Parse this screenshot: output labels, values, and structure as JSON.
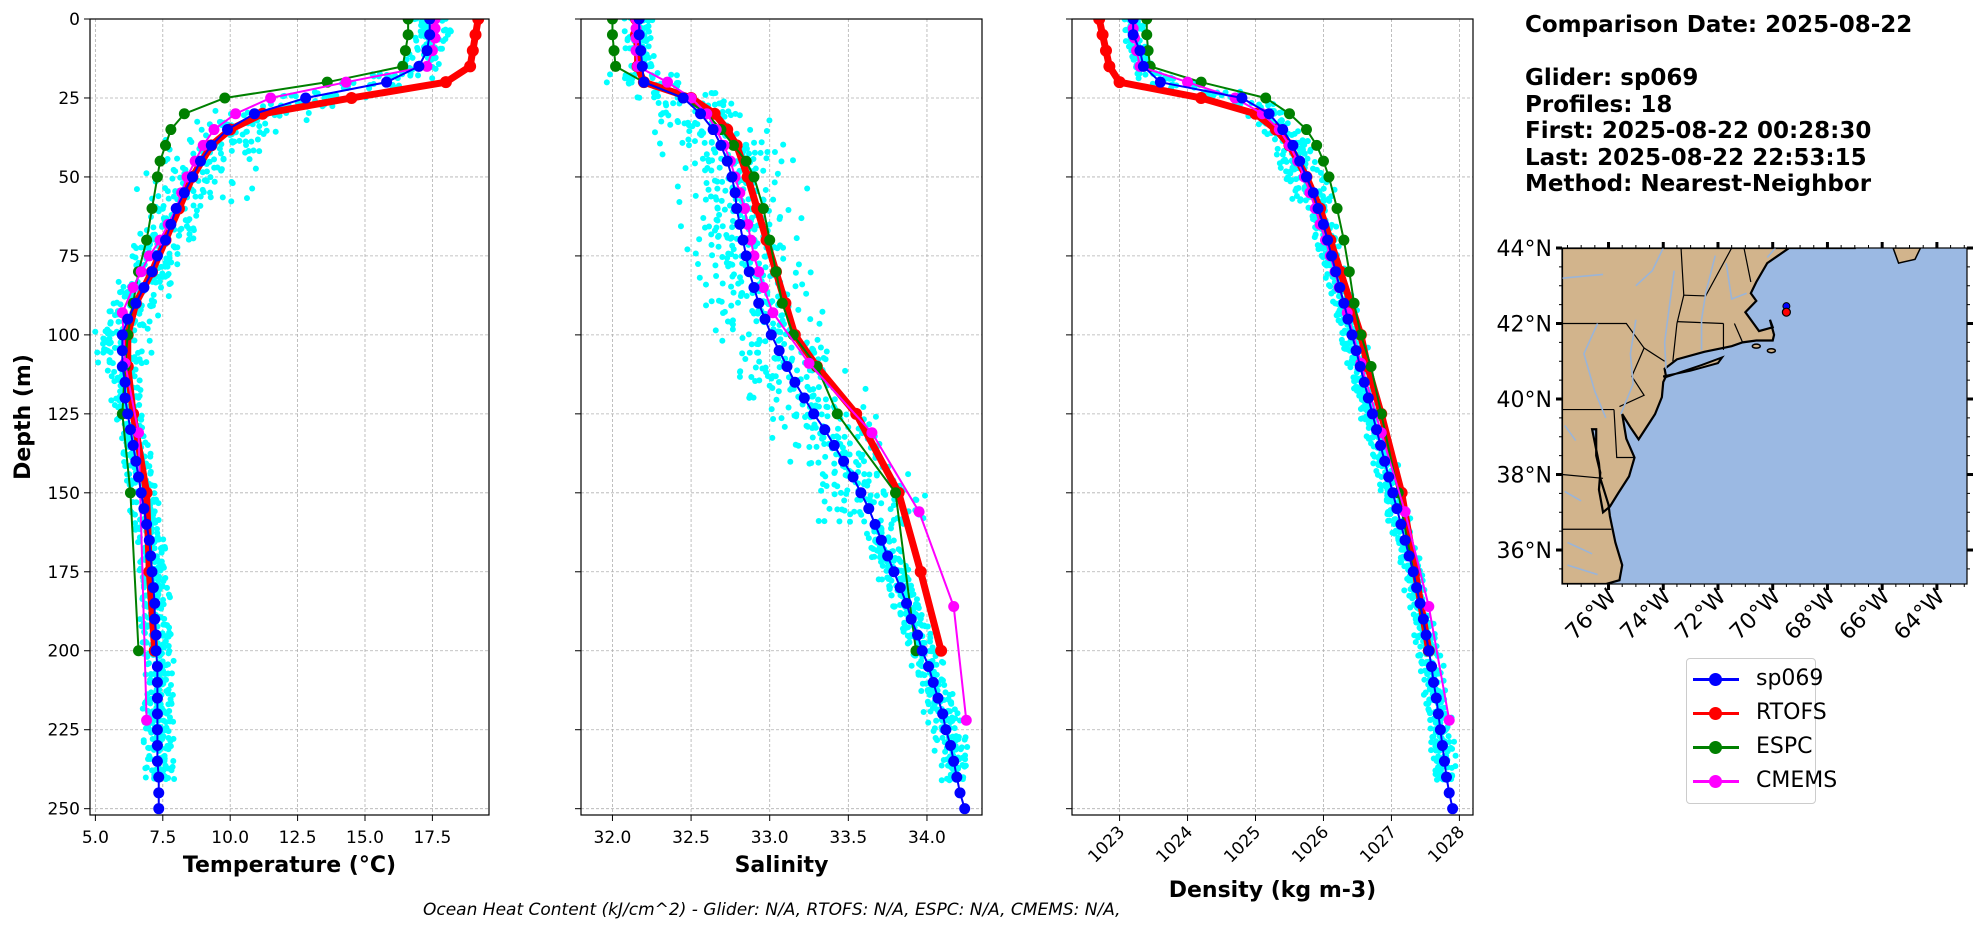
{
  "info": {
    "comparison_date": "Comparison Date: 2025-08-22",
    "glider": "Glider: sp069",
    "profiles": "Profiles: 18",
    "first": "First: 2025-08-22 00:28:30",
    "last": "Last: 2025-08-22 22:53:15",
    "method": "Method: Nearest-Neighbor"
  },
  "footer": "Ocean Heat Content (kJ/cm^2) - Glider: N/A,  RTOFS: N/A,  ESPC: N/A,  CMEMS: N/A,",
  "colors": {
    "sp069": "#0000ff",
    "RTOFS": "#ff0000",
    "ESPC": "#008000",
    "CMEMS": "#ff00ff",
    "glider_profiles": "#00ffff",
    "land": "#d2b48c",
    "ocean": "#9bb9e3"
  },
  "legend": [
    {
      "label": "sp069",
      "color": "#0000ff"
    },
    {
      "label": "RTOFS",
      "color": "#ff0000"
    },
    {
      "label": "ESPC",
      "color": "#008000"
    },
    {
      "label": "CMEMS",
      "color": "#ff00ff"
    }
  ],
  "chart_data": [
    {
      "type": "line",
      "title": "",
      "xlabel": "Temperature (°C)",
      "ylabel": "Depth (m)",
      "xlim": [
        4.8,
        19.6
      ],
      "ylim": [
        252,
        0
      ],
      "xticks": [
        "5.0",
        "7.5",
        "10.0",
        "12.5",
        "15.0",
        "17.5"
      ],
      "yticks": [
        "0",
        "25",
        "50",
        "75",
        "100",
        "125",
        "150",
        "175",
        "200",
        "225",
        "250"
      ],
      "grid": true,
      "series": [
        {
          "name": "sp069",
          "depth": [
            0,
            5,
            10,
            15,
            20,
            25,
            30,
            35,
            40,
            45,
            50,
            55,
            60,
            65,
            70,
            75,
            80,
            85,
            90,
            95,
            100,
            105,
            110,
            115,
            120,
            125,
            130,
            135,
            140,
            145,
            150,
            155,
            160,
            165,
            170,
            175,
            180,
            185,
            190,
            195,
            200,
            205,
            210,
            215,
            220,
            225,
            230,
            235,
            240,
            245,
            250
          ],
          "values": [
            17.4,
            17.4,
            17.3,
            17.0,
            15.8,
            12.8,
            10.9,
            9.9,
            9.3,
            8.9,
            8.6,
            8.3,
            8.0,
            7.8,
            7.6,
            7.3,
            7.1,
            6.8,
            6.5,
            6.2,
            6.0,
            6.0,
            6.0,
            6.1,
            6.1,
            6.2,
            6.3,
            6.4,
            6.5,
            6.6,
            6.7,
            6.8,
            6.9,
            7.0,
            7.05,
            7.1,
            7.15,
            7.2,
            7.2,
            7.25,
            7.25,
            7.3,
            7.3,
            7.3,
            7.3,
            7.3,
            7.3,
            7.3,
            7.35,
            7.35,
            7.35
          ]
        },
        {
          "name": "RTOFS",
          "depth": [
            0,
            5,
            10,
            15,
            20,
            25,
            30,
            35,
            40,
            50,
            60,
            70,
            80,
            90,
            100,
            110,
            125,
            150,
            175,
            200
          ],
          "values": [
            19.2,
            19.1,
            19.0,
            18.9,
            18.0,
            14.5,
            11.2,
            10.0,
            9.3,
            8.6,
            8.1,
            7.6,
            7.1,
            6.5,
            6.2,
            6.2,
            6.4,
            6.9,
            7.0,
            7.2
          ]
        },
        {
          "name": "ESPC",
          "depth": [
            0,
            5,
            10,
            15,
            20,
            25,
            30,
            35,
            40,
            45,
            50,
            60,
            70,
            80,
            90,
            100,
            110,
            125,
            150,
            200
          ],
          "values": [
            16.6,
            16.6,
            16.5,
            16.4,
            13.6,
            9.8,
            8.3,
            7.8,
            7.6,
            7.4,
            7.3,
            7.1,
            6.9,
            6.6,
            6.4,
            6.2,
            6.1,
            6.0,
            6.3,
            6.6
          ]
        },
        {
          "name": "CMEMS",
          "depth": [
            0,
            3,
            6,
            10,
            15,
            20,
            25,
            30,
            35,
            40,
            45,
            50,
            55,
            60,
            65,
            70,
            75,
            80,
            85,
            93,
            109,
            131,
            222
          ],
          "values": [
            17.6,
            17.6,
            17.6,
            17.5,
            17.3,
            14.3,
            11.5,
            10.2,
            9.4,
            9.0,
            8.7,
            8.4,
            8.2,
            8.0,
            7.7,
            7.4,
            7.0,
            6.7,
            6.4,
            6.0,
            6.1,
            6.6,
            6.9
          ]
        }
      ]
    },
    {
      "type": "line",
      "title": "",
      "xlabel": "Salinity",
      "ylabel": "",
      "xlim": [
        31.8,
        34.35
      ],
      "ylim": [
        252,
        0
      ],
      "xticks": [
        "32.0",
        "32.5",
        "33.0",
        "33.5",
        "34.0"
      ],
      "grid": true,
      "series": [
        {
          "name": "sp069",
          "depth": [
            0,
            5,
            10,
            15,
            20,
            25,
            30,
            35,
            40,
            45,
            50,
            55,
            60,
            65,
            70,
            75,
            80,
            85,
            90,
            95,
            100,
            105,
            110,
            115,
            120,
            125,
            130,
            135,
            140,
            145,
            150,
            155,
            160,
            165,
            170,
            175,
            180,
            185,
            190,
            195,
            200,
            205,
            210,
            215,
            220,
            225,
            230,
            235,
            240,
            245,
            250
          ],
          "values": [
            32.17,
            32.17,
            32.18,
            32.19,
            32.2,
            32.45,
            32.56,
            32.64,
            32.69,
            32.73,
            32.76,
            32.78,
            32.79,
            32.81,
            32.83,
            32.85,
            32.87,
            32.9,
            32.93,
            32.97,
            33.01,
            33.06,
            33.11,
            33.16,
            33.22,
            33.28,
            33.35,
            33.41,
            33.47,
            33.53,
            33.58,
            33.63,
            33.67,
            33.71,
            33.75,
            33.79,
            33.83,
            33.87,
            33.9,
            33.94,
            33.97,
            34.01,
            34.04,
            34.07,
            34.1,
            34.12,
            34.15,
            34.17,
            34.19,
            34.21,
            34.24
          ]
        },
        {
          "name": "RTOFS",
          "depth": [
            0,
            5,
            10,
            15,
            20,
            25,
            30,
            35,
            40,
            50,
            60,
            70,
            80,
            90,
            100,
            110,
            125,
            150,
            175,
            200
          ],
          "values": [
            32.15,
            32.15,
            32.16,
            32.16,
            32.2,
            32.5,
            32.65,
            32.73,
            32.79,
            32.86,
            32.92,
            32.98,
            33.04,
            33.1,
            33.16,
            33.3,
            33.55,
            33.82,
            33.96,
            34.09
          ]
        },
        {
          "name": "ESPC",
          "depth": [
            0,
            5,
            10,
            15,
            20,
            25,
            30,
            35,
            40,
            45,
            50,
            60,
            70,
            80,
            90,
            100,
            110,
            125,
            150,
            200
          ],
          "values": [
            32.0,
            32.0,
            32.01,
            32.02,
            32.2,
            32.45,
            32.6,
            32.69,
            32.77,
            32.85,
            32.9,
            32.96,
            33.0,
            33.04,
            33.08,
            33.15,
            33.3,
            33.43,
            33.8,
            33.93
          ]
        },
        {
          "name": "CMEMS",
          "depth": [
            0,
            3,
            6,
            10,
            15,
            20,
            25,
            30,
            35,
            40,
            45,
            50,
            55,
            60,
            65,
            70,
            75,
            80,
            85,
            93,
            109,
            131,
            156,
            186,
            222
          ],
          "values": [
            32.15,
            32.15,
            32.15,
            32.15,
            32.16,
            32.35,
            32.5,
            32.6,
            32.66,
            32.71,
            32.75,
            32.78,
            32.81,
            32.84,
            32.86,
            32.88,
            32.9,
            32.93,
            32.96,
            33.02,
            33.25,
            33.65,
            33.95,
            34.17,
            34.25
          ]
        }
      ]
    },
    {
      "type": "line",
      "title": "",
      "xlabel": "Density (kg m-3)",
      "ylabel": "",
      "xlim": [
        1022.3,
        1028.2
      ],
      "ylim": [
        252,
        0
      ],
      "xticks": [
        "1023",
        "1024",
        "1025",
        "1026",
        "1027",
        "1028"
      ],
      "grid": true,
      "series": [
        {
          "name": "sp069",
          "depth": [
            0,
            5,
            10,
            15,
            20,
            25,
            30,
            35,
            40,
            45,
            50,
            55,
            60,
            65,
            70,
            75,
            80,
            85,
            90,
            95,
            100,
            105,
            110,
            115,
            120,
            125,
            130,
            135,
            140,
            145,
            150,
            155,
            160,
            165,
            170,
            175,
            180,
            185,
            190,
            195,
            200,
            205,
            210,
            215,
            220,
            225,
            230,
            235,
            240,
            245,
            250
          ],
          "values": [
            1023.2,
            1023.2,
            1023.3,
            1023.35,
            1023.6,
            1024.8,
            1025.2,
            1025.4,
            1025.55,
            1025.65,
            1025.75,
            1025.85,
            1025.92,
            1026.0,
            1026.06,
            1026.12,
            1026.18,
            1026.24,
            1026.3,
            1026.36,
            1026.42,
            1026.48,
            1026.54,
            1026.6,
            1026.66,
            1026.72,
            1026.78,
            1026.84,
            1026.9,
            1026.96,
            1027.02,
            1027.08,
            1027.14,
            1027.2,
            1027.26,
            1027.32,
            1027.37,
            1027.42,
            1027.47,
            1027.51,
            1027.55,
            1027.59,
            1027.62,
            1027.66,
            1027.69,
            1027.72,
            1027.75,
            1027.78,
            1027.81,
            1027.85,
            1027.9
          ]
        },
        {
          "name": "RTOFS",
          "depth": [
            0,
            5,
            10,
            15,
            20,
            25,
            30,
            35,
            40,
            50,
            60,
            70,
            80,
            90,
            100,
            110,
            125,
            150,
            175,
            200
          ],
          "values": [
            1022.7,
            1022.75,
            1022.8,
            1022.85,
            1023.0,
            1024.2,
            1025.0,
            1025.3,
            1025.5,
            1025.75,
            1025.95,
            1026.1,
            1026.25,
            1026.4,
            1026.55,
            1026.65,
            1026.85,
            1027.15,
            1027.35,
            1027.55
          ]
        },
        {
          "name": "ESPC",
          "depth": [
            0,
            5,
            10,
            15,
            20,
            25,
            30,
            35,
            40,
            45,
            50,
            60,
            70,
            80,
            90,
            100,
            110,
            125,
            150,
            200
          ],
          "values": [
            1023.4,
            1023.4,
            1023.42,
            1023.45,
            1024.2,
            1025.15,
            1025.5,
            1025.75,
            1025.9,
            1026.0,
            1026.08,
            1026.2,
            1026.3,
            1026.38,
            1026.45,
            1026.55,
            1026.7,
            1026.85,
            1027.1,
            1027.55
          ]
        },
        {
          "name": "CMEMS",
          "depth": [
            0,
            3,
            6,
            10,
            15,
            20,
            25,
            30,
            35,
            40,
            45,
            50,
            55,
            60,
            65,
            70,
            75,
            80,
            85,
            93,
            109,
            131,
            156,
            186,
            222
          ],
          "values": [
            1023.2,
            1023.2,
            1023.22,
            1023.25,
            1023.3,
            1024.0,
            1024.7,
            1025.1,
            1025.35,
            1025.5,
            1025.62,
            1025.72,
            1025.8,
            1025.88,
            1025.95,
            1026.03,
            1026.1,
            1026.17,
            1026.23,
            1026.35,
            1026.55,
            1026.85,
            1027.2,
            1027.55,
            1027.85
          ]
        }
      ]
    }
  ],
  "map": {
    "lat_labels": [
      "44°N",
      "42°N",
      "40°N",
      "38°N",
      "36°N"
    ],
    "lat_values": [
      44,
      42,
      40,
      38,
      36
    ],
    "lon_labels": [
      "76°W",
      "74°W",
      "72°W",
      "70°W",
      "68°W",
      "66°W",
      "64°W"
    ],
    "lon_values": [
      -76,
      -74,
      -72,
      -70,
      -68,
      -66,
      -64
    ],
    "lon_range": [
      -77.7,
      -62.9
    ],
    "lat_range": [
      35.1,
      44.0
    ],
    "glider_position": {
      "lon": -69.5,
      "lat": 42.3
    }
  }
}
